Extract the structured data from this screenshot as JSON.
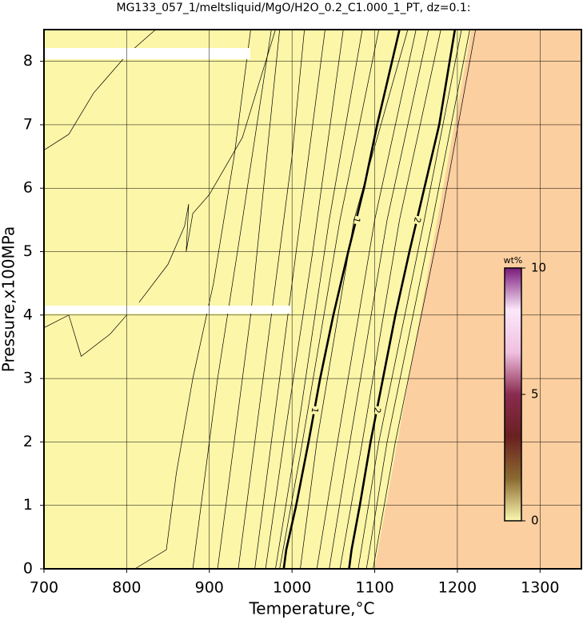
{
  "chart_data": {
    "type": "contour",
    "title": "MG133_057_1/meltsliquid/MgO/H2O_0.2_C1.000_1_PT, dz=0.1:",
    "x_label": "Temperature,°C",
    "y_label": "Pressure,x100MPa",
    "xlim": [
      700,
      1350
    ],
    "ylim": [
      0,
      8.5
    ],
    "xticks": [
      700,
      800,
      900,
      1000,
      1100,
      1200,
      1300
    ],
    "yticks": [
      0,
      1,
      2,
      3,
      4,
      5,
      6,
      7,
      8
    ],
    "grid": true,
    "background": "#fcf6a8",
    "regions": [
      {
        "color": "#fccfa0",
        "x": [
          1100,
          1217,
          1350,
          1350
        ],
        "y": [
          0,
          8.5,
          8.5,
          0
        ]
      }
    ],
    "line_color": "#000000",
    "contours": [
      {
        "x": [
          700,
          730,
          760,
          800,
          835
        ],
        "y": [
          6.6,
          6.85,
          7.5,
          8.1,
          8.5
        ]
      },
      {
        "x": [
          700,
          730,
          745,
          780,
          800
        ],
        "y": [
          3.8,
          4.0,
          3.35,
          3.7,
          4.0
        ]
      },
      {
        "x": [
          815,
          850,
          870,
          875,
          872,
          880,
          900,
          940,
          980
        ],
        "y": [
          4.2,
          4.8,
          5.4,
          5.75,
          5.0,
          5.6,
          5.9,
          6.8,
          8.5
        ]
      },
      {
        "x": [
          810,
          848,
          860,
          880,
          905,
          930,
          950
        ],
        "y": [
          0,
          0.3,
          1.5,
          3,
          4.5,
          6.5,
          8.5
        ]
      },
      {
        "x": [
          880,
          890,
          910,
          940,
          975
        ],
        "y": [
          0,
          1,
          3,
          5.5,
          8.5
        ]
      },
      {
        "x": [
          910,
          925,
          950,
          985
        ],
        "y": [
          0,
          1.5,
          4,
          8.5
        ]
      },
      {
        "x": [
          935,
          960,
          1000,
          1015
        ],
        "y": [
          0,
          2.5,
          6.5,
          8.5
        ]
      },
      {
        "x": [
          955,
          975,
          1010,
          1040
        ],
        "y": [
          0,
          2,
          5.5,
          8.5
        ]
      },
      {
        "x": [
          968,
          990,
          1025,
          1062
        ],
        "y": [
          0,
          2,
          5,
          8.5
        ]
      },
      {
        "x": [
          980,
          1005,
          1045,
          1085
        ],
        "y": [
          0,
          2,
          5.5,
          8.5
        ]
      },
      {
        "x": [
          985,
          1010,
          1058,
          1105
        ],
        "y": [
          0,
          1.8,
          5.5,
          8.5
        ]
      },
      {
        "level": 1,
        "bold": true,
        "x": [
          990,
          993,
          1005,
          1020,
          1034,
          1050,
          1068,
          1087,
          1103,
          1130
        ],
        "y": [
          0,
          0.3,
          1,
          2,
          3,
          4,
          5,
          6,
          7,
          8.5
        ]
      },
      {
        "x": [
          1010,
          1030,
          1075,
          1140
        ],
        "y": [
          0,
          2,
          5.5,
          8.5
        ]
      },
      {
        "x": [
          1030,
          1055,
          1100,
          1150
        ],
        "y": [
          0,
          2,
          5.5,
          8.5
        ]
      },
      {
        "x": [
          1045,
          1070,
          1115,
          1165
        ],
        "y": [
          0,
          2,
          5.5,
          8.5
        ]
      },
      {
        "x": [
          1058,
          1085,
          1130,
          1180
        ],
        "y": [
          0,
          2,
          5.5,
          8.5
        ]
      },
      {
        "level": 2,
        "bold": true,
        "x": [
          1069,
          1072,
          1082,
          1095,
          1110,
          1125,
          1142,
          1160,
          1178,
          1197
        ],
        "y": [
          0,
          0.3,
          1,
          2,
          3,
          4,
          5,
          6,
          7,
          8.5
        ]
      },
      {
        "x": [
          1080,
          1105,
          1160,
          1205
        ],
        "y": [
          0,
          2,
          5.5,
          8.5
        ]
      },
      {
        "x": [
          1090,
          1115,
          1170,
          1215
        ],
        "y": [
          0,
          2,
          5.5,
          8.5
        ]
      },
      {
        "x": [
          1098,
          1125,
          1180,
          1222
        ],
        "y": [
          0,
          2,
          5.5,
          8.5
        ]
      }
    ],
    "colorbar": {
      "label": "wt%",
      "lim": [
        0,
        10
      ],
      "ticks": [
        0,
        5,
        10
      ],
      "colors": [
        "#fbf7b0",
        "#8a6a30",
        "#6a2020",
        "#8a2a50",
        "#f0c0e0",
        "#fce8fa",
        "#7a1a7a"
      ]
    }
  }
}
